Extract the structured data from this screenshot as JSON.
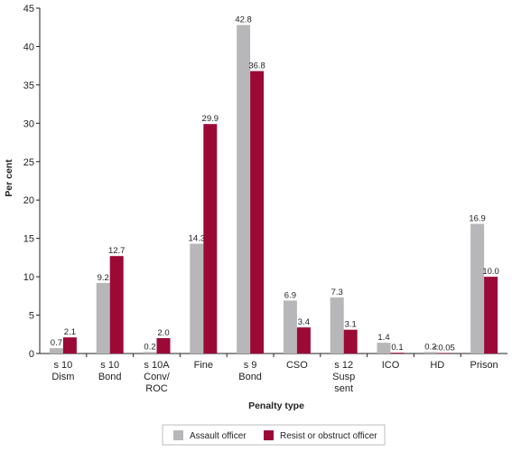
{
  "chart_data": {
    "type": "bar",
    "title": "",
    "xlabel": "Penalty type",
    "ylabel": "Per cent",
    "ylim": [
      0,
      45
    ],
    "yticks": [
      0,
      5,
      10,
      15,
      20,
      25,
      30,
      35,
      40,
      45
    ],
    "grid": false,
    "legend_position": "bottom",
    "categories": [
      [
        "s 10",
        "Dism"
      ],
      [
        "s 10",
        "Bond"
      ],
      [
        "s 10A",
        "Conv/",
        "ROC"
      ],
      [
        "Fine"
      ],
      [
        "s 9",
        "Bond"
      ],
      [
        "CSO"
      ],
      [
        "s 12",
        "Susp",
        "sent"
      ],
      [
        "ICO"
      ],
      [
        "HD"
      ],
      [
        "Prison"
      ]
    ],
    "series": [
      {
        "name": "Assault officer",
        "color": "#b7b7b9",
        "values": [
          0.7,
          9.2,
          0.2,
          14.3,
          42.8,
          6.9,
          7.3,
          1.4,
          0.2,
          16.9
        ],
        "labels": [
          "0.7",
          "9.2",
          "0.2",
          "14.3",
          "42.8",
          "6.9",
          "7.3",
          "1.4",
          "0.2",
          "16.9"
        ]
      },
      {
        "name": "Resist or obstruct officer",
        "color": "#9b0a37",
        "values": [
          2.1,
          12.7,
          2.0,
          29.9,
          36.8,
          3.4,
          3.1,
          0.1,
          0.04,
          10.0
        ],
        "labels": [
          "2.1",
          "12.7",
          "2.0",
          "29.9",
          "36.8",
          "3.4",
          "3.1",
          "0.1",
          "<0.05",
          "10.0"
        ]
      }
    ]
  }
}
